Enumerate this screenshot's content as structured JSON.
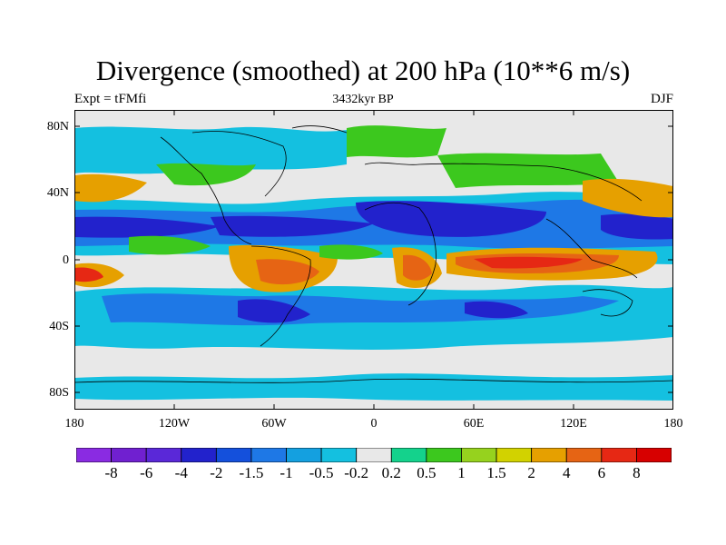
{
  "title": "Divergence (smoothed) at 200 hPa (10**6 m/s)",
  "subtitle_left": "Expt = tFMfi",
  "subtitle_center": "3432kyr BP",
  "subtitle_right": "DJF",
  "lat_labels": [
    "80N",
    "40N",
    "0",
    "40S",
    "80S"
  ],
  "lon_labels": [
    "180",
    "120W",
    "60W",
    "0",
    "60E",
    "120E",
    "180"
  ],
  "colorbar": {
    "labels": [
      "-8",
      "-6",
      "-4",
      "-2",
      "-1.5",
      "-1",
      "-0.5",
      "-0.2",
      "0.2",
      "0.5",
      "1",
      "1.5",
      "2",
      "4",
      "6",
      "8"
    ],
    "colors": [
      "#8a2be2",
      "#7020d0",
      "#5a28d8",
      "#2222cc",
      "#1450dc",
      "#1e78e6",
      "#14a0e0",
      "#14c0e0",
      "#e8e8e8",
      "#14d28c",
      "#3cc81e",
      "#96d21e",
      "#d2d200",
      "#e6a000",
      "#e66414",
      "#e62814",
      "#d70000"
    ]
  },
  "palette": {
    "very_neg": "#2222cc",
    "neg_mid": "#1e78e6",
    "neg_low": "#14c0e0",
    "neutral": "#e8e8e8",
    "pos_low": "#3cc81e",
    "pos_mid": "#d2d200",
    "pos_high": "#e6a000",
    "pos_max": "#e66414",
    "pos_peak": "#e62814"
  }
}
